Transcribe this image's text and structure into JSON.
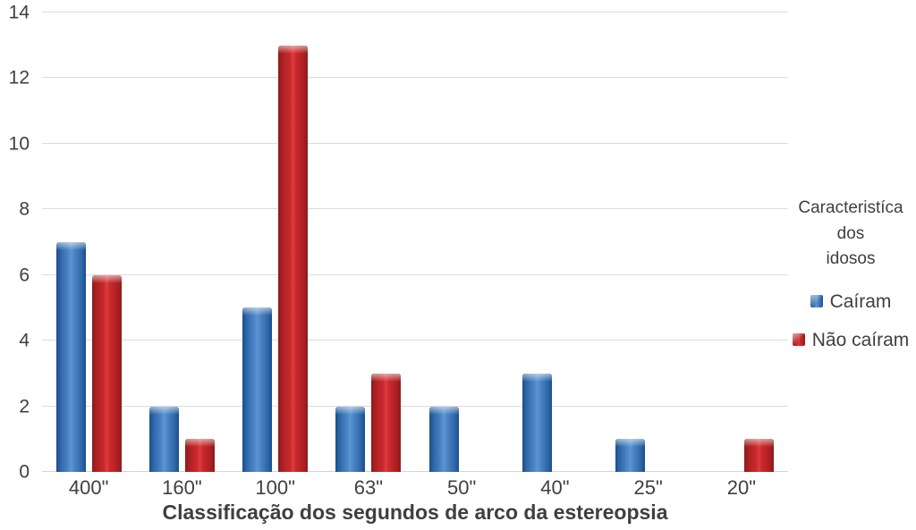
{
  "chart_data": {
    "type": "bar",
    "categories": [
      "400\"",
      "160\"",
      "100\"",
      "63\"",
      "50\"",
      "40\"",
      "25\"",
      "20\""
    ],
    "series": [
      {
        "name": "Caíram",
        "color": "#2f66a8",
        "values": [
          7,
          2,
          5,
          2,
          2,
          3,
          1,
          0
        ]
      },
      {
        "name": "Não caíram",
        "color": "#c2272a",
        "values": [
          6,
          1,
          13,
          3,
          0,
          0,
          0,
          1
        ]
      }
    ],
    "title": "",
    "xlabel": "Classificação dos segundos de arco da estereopsia",
    "ylabel": "",
    "ylim": [
      0,
      14
    ],
    "yticks": [
      0,
      2,
      4,
      6,
      8,
      10,
      12,
      14
    ],
    "grid": true,
    "legend_title": "Caracteristíca dos idosos",
    "legend_position": "right",
    "colors": {
      "gridline": "#dcdcdc",
      "text": "#3f3f3f",
      "background": "#ffffff",
      "bar_blue": "#2f66a8",
      "bar_red": "#c2272a"
    }
  },
  "legend": {
    "title_lines": [
      "Caracteristíca dos",
      "idosos"
    ]
  }
}
